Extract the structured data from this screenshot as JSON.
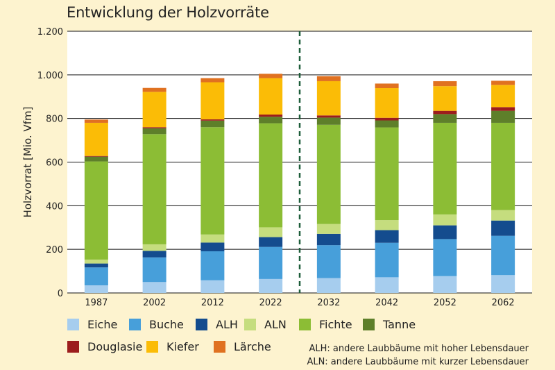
{
  "chart_data": {
    "type": "bar",
    "stacked": true,
    "title": "Entwicklung der Holzvorräte",
    "xlabel": "",
    "ylabel": "Holzvorrat [Mio. Vfm]",
    "ylim": [
      0,
      1200
    ],
    "yticks": [
      0,
      200,
      400,
      600,
      800,
      1000,
      1200
    ],
    "ytick_labels": [
      "0",
      "200",
      "400",
      "600",
      "800",
      "1.000",
      "1.200"
    ],
    "grid": true,
    "divider_after_category": "2022",
    "categories": [
      "1987",
      "2002",
      "2012",
      "2022",
      "2032",
      "2042",
      "2052",
      "2062"
    ],
    "series": [
      {
        "name": "Eiche",
        "color": "#a6cdee",
        "values": [
          35,
          50,
          58,
          64,
          68,
          72,
          77,
          82
        ]
      },
      {
        "name": "Buche",
        "color": "#479fda",
        "values": [
          82,
          113,
          133,
          147,
          151,
          158,
          170,
          180
        ]
      },
      {
        "name": "ALH",
        "color": "#144c8e",
        "values": [
          18,
          30,
          40,
          45,
          52,
          58,
          63,
          70
        ]
      },
      {
        "name": "ALN",
        "color": "#c5dd7e",
        "values": [
          18,
          30,
          37,
          45,
          45,
          46,
          50,
          48
        ]
      },
      {
        "name": "Fichte",
        "color": "#8cbd35",
        "values": [
          450,
          505,
          492,
          477,
          455,
          425,
          420,
          400
        ]
      },
      {
        "name": "Tanne",
        "color": "#5e7f2a",
        "values": [
          22,
          27,
          30,
          30,
          33,
          32,
          40,
          55
        ]
      },
      {
        "name": "Douglasie",
        "color": "#9c1d1d",
        "values": [
          3,
          5,
          6,
          10,
          10,
          12,
          15,
          17
        ]
      },
      {
        "name": "Kiefer",
        "color": "#fbbc06",
        "values": [
          152,
          162,
          170,
          167,
          157,
          136,
          113,
          102
        ]
      },
      {
        "name": "Lärche",
        "color": "#e07120",
        "values": [
          15,
          18,
          19,
          20,
          23,
          21,
          23,
          19
        ]
      }
    ]
  },
  "footnotes": {
    "alh": "ALH: andere Laubbäume mit hoher Lebensdauer",
    "aln": "ALN: andere Laubbäume mit kurzer Lebensdauer"
  }
}
